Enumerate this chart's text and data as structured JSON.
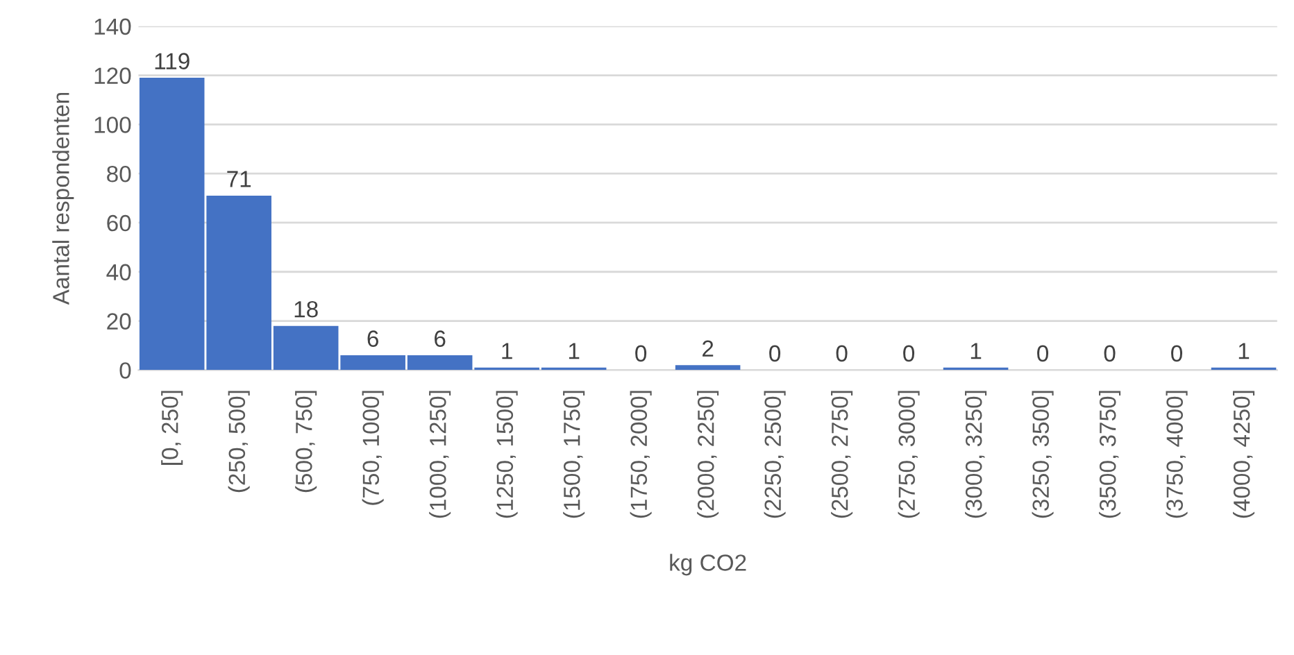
{
  "chart_data": {
    "type": "bar",
    "categories": [
      "[0, 250]",
      "(250, 500]",
      "(500, 750]",
      "(750, 1000]",
      "(1000, 1250]",
      "(1250, 1500]",
      "(1500, 1750]",
      "(1750, 2000]",
      "(2000, 2250]",
      "(2250, 2500]",
      "(2500, 2750]",
      "(2750, 3000]",
      "(3000, 3250]",
      "(3250, 3500]",
      "(3500, 3750]",
      "(3750, 4000]",
      "(4000, 4250]"
    ],
    "values": [
      119,
      71,
      18,
      6,
      6,
      1,
      1,
      0,
      2,
      0,
      0,
      0,
      1,
      0,
      0,
      0,
      1
    ],
    "color": "#4472c4",
    "xlabel": "kg CO2",
    "ylabel": "Aantal respondenten",
    "ylim": [
      0,
      140
    ],
    "yticks": [
      0,
      20,
      40,
      60,
      80,
      100,
      120,
      140
    ],
    "grid": "y",
    "data_labels": true
  }
}
